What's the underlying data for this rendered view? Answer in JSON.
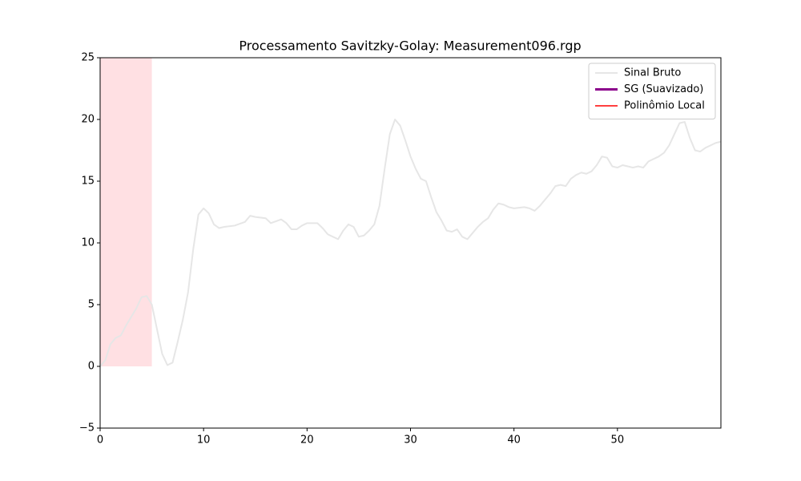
{
  "chart_data": {
    "type": "line",
    "title": "Processamento Savitzky-Golay: Measurement096.rgp",
    "xlim": [
      0,
      60
    ],
    "ylim": [
      -5,
      25
    ],
    "xticks": [
      0,
      10,
      20,
      30,
      40,
      50
    ],
    "yticks": [
      {
        "value": -5,
        "label": "−5"
      },
      0,
      5,
      10,
      15,
      20,
      25
    ],
    "legend": "upper right",
    "highlight": {
      "x": [
        0,
        5
      ],
      "y": [
        0,
        25
      ],
      "color": "#ffe0e3"
    },
    "series": [
      {
        "name": "Sinal Bruto",
        "color": "#e6e6e6",
        "linewidth": 2,
        "x": [
          0,
          0.5,
          1,
          1.5,
          2,
          2.5,
          3,
          3.5,
          4,
          4.5,
          5,
          5.5,
          6,
          6.5,
          7,
          7.5,
          8,
          8.5,
          9,
          9.5,
          10,
          10.5,
          11,
          11.5,
          12,
          13,
          14,
          14.5,
          15,
          16,
          16.5,
          17.5,
          18,
          18.5,
          19,
          19.5,
          20,
          21,
          21.5,
          22,
          23,
          23.5,
          24,
          24.5,
          25,
          25.5,
          26,
          26.5,
          27,
          27.5,
          28,
          28.5,
          29,
          29.5,
          30,
          30.5,
          31,
          31.5,
          32,
          32.5,
          33,
          33.5,
          34,
          34.5,
          35,
          35.5,
          36,
          36.5,
          37,
          37.5,
          38,
          38.5,
          39,
          39.5,
          40,
          41,
          41.5,
          42,
          42.5,
          43,
          43.5,
          44,
          44.5,
          45,
          45.5,
          46,
          46.5,
          47,
          47.5,
          48,
          48.5,
          49,
          49.5,
          50,
          50.5,
          51,
          51.5,
          52,
          52.5,
          53,
          53.5,
          54,
          54.5,
          55,
          55.5,
          56,
          56.5,
          57,
          57.5,
          58,
          58.5,
          59,
          59.5,
          60
        ],
        "values": [
          0,
          0.5,
          1.8,
          2.3,
          2.5,
          3.3,
          4.0,
          4.7,
          5.6,
          5.7,
          5.0,
          3.0,
          1.0,
          0.1,
          0.3,
          2.0,
          3.8,
          6.0,
          9.5,
          12.3,
          12.8,
          12.4,
          11.5,
          11.2,
          11.3,
          11.4,
          11.7,
          12.2,
          12.1,
          12.0,
          11.6,
          11.9,
          11.6,
          11.1,
          11.1,
          11.4,
          11.6,
          11.6,
          11.2,
          10.7,
          10.3,
          11.0,
          11.5,
          11.3,
          10.5,
          10.6,
          11.0,
          11.5,
          13.0,
          16.0,
          18.8,
          20.0,
          19.5,
          18.3,
          17.0,
          16.0,
          15.2,
          15.0,
          13.7,
          12.5,
          11.8,
          11.0,
          10.9,
          11.1,
          10.5,
          10.3,
          10.8,
          11.3,
          11.7,
          12.0,
          12.7,
          13.2,
          13.1,
          12.9,
          12.8,
          12.9,
          12.8,
          12.6,
          13.0,
          13.5,
          14.0,
          14.6,
          14.7,
          14.6,
          15.2,
          15.5,
          15.7,
          15.6,
          15.8,
          16.3,
          17.0,
          16.9,
          16.2,
          16.1,
          16.3,
          16.2,
          16.1,
          16.2,
          16.1,
          16.6,
          16.8,
          17.0,
          17.3,
          17.9,
          18.8,
          19.7,
          19.8,
          18.5,
          17.5,
          17.4,
          17.7,
          17.9,
          18.1,
          18.2
        ]
      },
      {
        "name": "SG (Suavizado)",
        "color": "#8b008b",
        "linewidth": 3,
        "x": [],
        "values": []
      },
      {
        "name": "Polinômio Local",
        "color": "#ff0000",
        "linewidth": 1.5,
        "x": [],
        "values": []
      }
    ]
  }
}
